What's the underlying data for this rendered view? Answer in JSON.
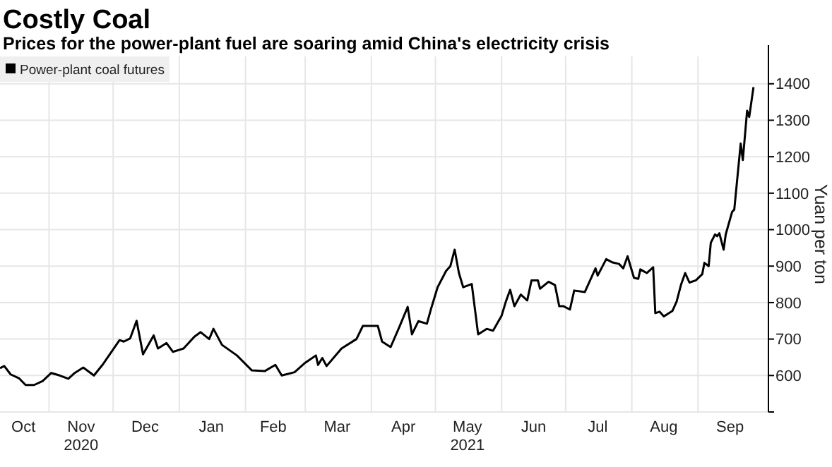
{
  "chart_data": {
    "type": "line",
    "title": "Costly Coal",
    "subtitle": "Prices for the power-plant fuel are soaring amid China's electricity crisis",
    "ylabel": "Yuan per ton",
    "x": [
      "2020-10-09",
      "2020-10-11",
      "2020-10-14",
      "2020-10-18",
      "2020-10-21",
      "2020-10-25",
      "2020-10-29",
      "2020-11-02",
      "2020-11-06",
      "2020-11-10",
      "2020-11-13",
      "2020-11-17",
      "2020-11-22",
      "2020-11-26",
      "2020-12-04",
      "2020-12-06",
      "2020-12-09",
      "2020-12-12",
      "2020-12-15",
      "2020-12-20",
      "2020-12-22",
      "2020-12-26",
      "2020-12-29",
      "2021-01-03",
      "2021-01-08",
      "2021-01-11",
      "2021-01-15",
      "2021-01-17",
      "2021-01-21",
      "2021-01-28",
      "2021-02-04",
      "2021-02-10",
      "2021-02-15",
      "2021-02-18",
      "2021-02-24",
      "2021-03-01",
      "2021-03-06",
      "2021-03-07",
      "2021-03-09",
      "2021-03-11",
      "2021-03-18",
      "2021-03-25",
      "2021-03-28",
      "2021-04-04",
      "2021-04-06",
      "2021-04-10",
      "2021-04-14",
      "2021-04-18",
      "2021-04-20",
      "2021-04-23",
      "2021-04-27",
      "2021-04-29",
      "2021-05-02",
      "2021-05-06",
      "2021-05-08",
      "2021-05-10",
      "2021-05-12",
      "2021-05-14",
      "2021-05-18",
      "2021-05-21",
      "2021-05-25",
      "2021-05-28",
      "2021-06-01",
      "2021-06-03",
      "2021-06-05",
      "2021-06-07",
      "2021-06-10",
      "2021-06-13",
      "2021-06-15",
      "2021-06-18",
      "2021-06-19",
      "2021-06-23",
      "2021-06-26",
      "2021-06-28",
      "2021-06-30",
      "2021-07-03",
      "2021-07-05",
      "2021-07-10",
      "2021-07-15",
      "2021-07-16",
      "2021-07-20",
      "2021-07-23",
      "2021-07-26",
      "2021-07-28",
      "2021-07-30",
      "2021-08-02",
      "2021-08-04",
      "2021-08-05",
      "2021-08-08",
      "2021-08-11",
      "2021-08-12",
      "2021-08-14",
      "2021-08-16",
      "2021-08-20",
      "2021-08-22",
      "2021-08-24",
      "2021-08-26",
      "2021-08-28",
      "2021-08-31",
      "2021-09-03",
      "2021-09-04",
      "2021-09-06",
      "2021-09-07",
      "2021-09-09",
      "2021-09-10",
      "2021-09-11",
      "2021-09-13",
      "2021-09-14",
      "2021-09-17",
      "2021-09-18",
      "2021-09-21",
      "2021-09-22",
      "2021-09-24",
      "2021-09-25",
      "2021-09-27"
    ],
    "series": [
      {
        "name": "Power-plant coal futures",
        "color": "#000000",
        "values": [
          620,
          626,
          603,
          592,
          574,
          574,
          585,
          607,
          600,
          591,
          607,
          622,
          600,
          629,
          697,
          693,
          702,
          750,
          658,
          710,
          674,
          689,
          665,
          674,
          706,
          719,
          700,
          728,
          684,
          655,
          614,
          612,
          629,
          600,
          609,
          635,
          655,
          629,
          648,
          626,
          674,
          700,
          736,
          736,
          693,
          678,
          732,
          788,
          713,
          749,
          742,
          784,
          842,
          887,
          900,
          945,
          881,
          842,
          851,
          713,
          728,
          723,
          764,
          803,
          835,
          790,
          822,
          806,
          861,
          861,
          838,
          857,
          848,
          790,
          790,
          781,
          833,
          829,
          894,
          874,
          919,
          910,
          906,
          894,
          927,
          868,
          865,
          891,
          881,
          897,
          771,
          775,
          762,
          777,
          803,
          848,
          881,
          855,
          861,
          878,
          909,
          900,
          964,
          987,
          982,
          990,
          945,
          987,
          1049,
          1055,
          1236,
          1191,
          1326,
          1309,
          1391
        ]
      }
    ],
    "xlim": [
      "2020-10-09",
      "2021-10-04"
    ],
    "xticks": [
      {
        "value": "2020-10-20",
        "label": "Oct"
      },
      {
        "value": "2020-11-01",
        "label": null
      },
      {
        "value": "2020-11-16",
        "label": "Nov\n2020"
      },
      {
        "value": "2020-12-01",
        "label": null
      },
      {
        "value": "2020-12-16",
        "label": "Dec"
      },
      {
        "value": "2021-01-01",
        "label": null
      },
      {
        "value": "2021-01-16",
        "label": "Jan"
      },
      {
        "value": "2021-02-01",
        "label": null
      },
      {
        "value": "2021-02-14",
        "label": "Feb"
      },
      {
        "value": "2021-03-01",
        "label": null
      },
      {
        "value": "2021-03-16",
        "label": "Mar"
      },
      {
        "value": "2021-04-01",
        "label": null
      },
      {
        "value": "2021-04-16",
        "label": "Apr"
      },
      {
        "value": "2021-05-01",
        "label": null
      },
      {
        "value": "2021-05-16",
        "label": "May\n2021"
      },
      {
        "value": "2021-06-01",
        "label": null
      },
      {
        "value": "2021-06-16",
        "label": "Jun"
      },
      {
        "value": "2021-07-01",
        "label": null
      },
      {
        "value": "2021-07-16",
        "label": "Jul"
      },
      {
        "value": "2021-08-01",
        "label": null
      },
      {
        "value": "2021-08-16",
        "label": "Aug"
      },
      {
        "value": "2021-09-01",
        "label": null
      },
      {
        "value": "2021-09-16",
        "label": "Sep"
      }
    ],
    "ylim": [
      500,
      1475
    ],
    "yticks": [
      {
        "value": 500,
        "label": null
      },
      600,
      700,
      800,
      900,
      1000,
      1100,
      1200,
      1300,
      1400
    ],
    "grid": true,
    "legend": "top left"
  }
}
